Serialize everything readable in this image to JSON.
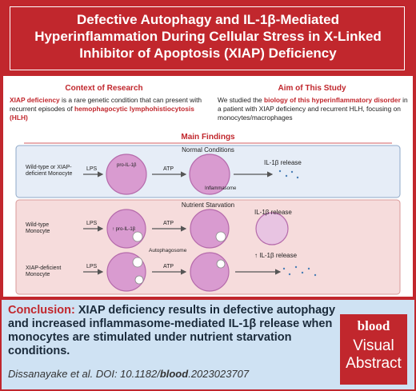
{
  "header": {
    "title": "Defective Autophagy and IL-1β-Mediated Hyperinflammation During Cellular Stress in X-Linked Inhibitor of Apoptosis (XIAP) Deficiency"
  },
  "context": {
    "heading": "Context of Research",
    "text": [
      "XIAP deficiency",
      " is a rare genetic condition that can present with recurrent episodes of ",
      "hemophagocytic lymphohistiocytosis (HLH)"
    ]
  },
  "aim": {
    "heading": "Aim of This Study",
    "text": [
      "We studied the ",
      "biology of this hyperinflammatory disorder",
      " in a patient with XIAP deficiency and recurrent HLH, focusing on monocytes/macrophages"
    ]
  },
  "main_findings": {
    "heading": "Main Findings",
    "normal": {
      "title": "Normal Conditions",
      "cell_label": "Wild-type or XIAP-deficient Monocyte",
      "stimulus_1": "LPS",
      "product": "pro-IL-1β",
      "stimulus_2": "ATP",
      "complex": "Inflammasome",
      "outcome": "IL-1β release"
    },
    "starvation": {
      "title": "Nutrient Starvation",
      "wild_type": {
        "cell_label": "Wild-type Monocyte",
        "stimulus_1": "LPS",
        "product": "↑ pro-IL-1β",
        "stimulus_2": "ATP",
        "vesicle": "Autophagosome",
        "outcome": "IL-1β release"
      },
      "xiap_deficient": {
        "cell_label": "XIAP-deficient Monocyte",
        "stimulus_1": "LPS",
        "stimulus_2": "ATP",
        "outcome": "↑ IL-1β release"
      }
    }
  },
  "conclusion": {
    "label": "Conclusion:",
    "text": "XIAP deficiency results in defective autophagy and increased inflammasome-mediated IL-1β release when monocytes are stimulated under nutrient starvation conditions."
  },
  "citation": [
    "Dissanayake et al. DOI: 10.1182/",
    "blood",
    ".2023023707"
  ],
  "logo": {
    "brand": "blood",
    "line_1": "Visual",
    "line_2": "Abstract"
  }
}
